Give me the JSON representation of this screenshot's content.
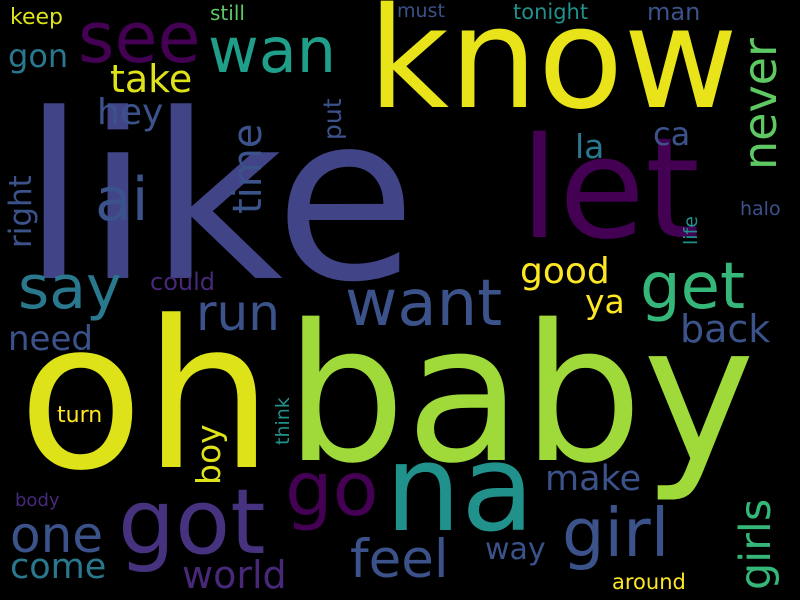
{
  "background": "#000000",
  "words": [
    {
      "text": "like",
      "color": "#414487",
      "weight": 0.62,
      "rotated": false
    },
    {
      "text": "oh",
      "color": "#dde318",
      "weight": 0.55,
      "rotated": false
    },
    {
      "text": "baby",
      "color": "#9fda3a",
      "weight": 0.5,
      "rotated": false
    },
    {
      "text": "know",
      "color": "#e8e419",
      "weight": 0.38,
      "rotated": false
    },
    {
      "text": "let",
      "color": "#440154",
      "weight": 0.34,
      "rotated": false
    },
    {
      "text": "na",
      "color": "#21918c",
      "weight": 0.3,
      "rotated": false
    },
    {
      "text": "got",
      "color": "#46327e",
      "weight": 0.22,
      "rotated": false
    },
    {
      "text": "go",
      "color": "#440154",
      "weight": 0.16,
      "rotated": false
    },
    {
      "text": "see",
      "color": "#440154",
      "weight": 0.14,
      "rotated": false
    },
    {
      "text": "wan",
      "color": "#1f9e89",
      "weight": 0.14,
      "rotated": false
    },
    {
      "text": "want",
      "color": "#3b528b",
      "weight": 0.14,
      "rotated": false
    },
    {
      "text": "girl",
      "color": "#3b528b",
      "weight": 0.14,
      "rotated": false
    },
    {
      "text": "get",
      "color": "#35b779",
      "weight": 0.13,
      "rotated": false
    },
    {
      "text": "say",
      "color": "#2a788e",
      "weight": 0.12,
      "rotated": false
    },
    {
      "text": "run",
      "color": "#3b528b",
      "weight": 0.1,
      "rotated": false
    },
    {
      "text": "one",
      "color": "#3b528b",
      "weight": 0.1,
      "rotated": false
    },
    {
      "text": "ai",
      "color": "#3b528b",
      "weight": 0.1,
      "rotated": false
    },
    {
      "text": "feel",
      "color": "#3b528b",
      "weight": 0.1,
      "rotated": false
    },
    {
      "text": "never",
      "color": "#5ec962",
      "weight": 0.09,
      "rotated": true
    },
    {
      "text": "girls",
      "color": "#35b779",
      "weight": 0.09,
      "rotated": true
    },
    {
      "text": "time",
      "color": "#3b528b",
      "weight": 0.08,
      "rotated": true
    },
    {
      "text": "take",
      "color": "#dde318",
      "weight": 0.08,
      "rotated": false
    },
    {
      "text": "world",
      "color": "#482878",
      "weight": 0.08,
      "rotated": false
    },
    {
      "text": "good",
      "color": "#fde725",
      "weight": 0.07,
      "rotated": false
    },
    {
      "text": "back",
      "color": "#3b528b",
      "weight": 0.07,
      "rotated": false
    },
    {
      "text": "hey",
      "color": "#3b528b",
      "weight": 0.07,
      "rotated": false
    },
    {
      "text": "come",
      "color": "#2a788e",
      "weight": 0.07,
      "rotated": false
    },
    {
      "text": "make",
      "color": "#3b528b",
      "weight": 0.07,
      "rotated": false
    },
    {
      "text": "gon",
      "color": "#2a788e",
      "weight": 0.06,
      "rotated": false
    },
    {
      "text": "need",
      "color": "#3b528b",
      "weight": 0.06,
      "rotated": false
    },
    {
      "text": "boy",
      "color": "#dde318",
      "weight": 0.06,
      "rotated": true
    },
    {
      "text": "ya",
      "color": "#fde725",
      "weight": 0.06,
      "rotated": false
    },
    {
      "text": "la",
      "color": "#2a788e",
      "weight": 0.06,
      "rotated": false
    },
    {
      "text": "ca",
      "color": "#3b528b",
      "weight": 0.06,
      "rotated": false
    },
    {
      "text": "way",
      "color": "#3b528b",
      "weight": 0.05,
      "rotated": false
    },
    {
      "text": "right",
      "color": "#3b528b",
      "weight": 0.05,
      "rotated": true
    },
    {
      "text": "put",
      "color": "#3b528b",
      "weight": 0.04,
      "rotated": true
    },
    {
      "text": "keep",
      "color": "#dde318",
      "weight": 0.04,
      "rotated": false
    },
    {
      "text": "man",
      "color": "#3b528b",
      "weight": 0.04,
      "rotated": false
    },
    {
      "text": "could",
      "color": "#482878",
      "weight": 0.04,
      "rotated": false
    },
    {
      "text": "turn",
      "color": "#fde725",
      "weight": 0.04,
      "rotated": false
    },
    {
      "text": "tonight",
      "color": "#21918c",
      "weight": 0.03,
      "rotated": false
    },
    {
      "text": "around",
      "color": "#fde725",
      "weight": 0.03,
      "rotated": false
    },
    {
      "text": "still",
      "color": "#5ec962",
      "weight": 0.03,
      "rotated": false
    },
    {
      "text": "must",
      "color": "#3b528b",
      "weight": 0.03,
      "rotated": false
    },
    {
      "text": "halo",
      "color": "#3b528b",
      "weight": 0.03,
      "rotated": false
    },
    {
      "text": "life",
      "color": "#21918c",
      "weight": 0.03,
      "rotated": true
    },
    {
      "text": "think",
      "color": "#21918c",
      "weight": 0.03,
      "rotated": true
    },
    {
      "text": "body",
      "color": "#482878",
      "weight": 0.03,
      "rotated": false
    }
  ]
}
